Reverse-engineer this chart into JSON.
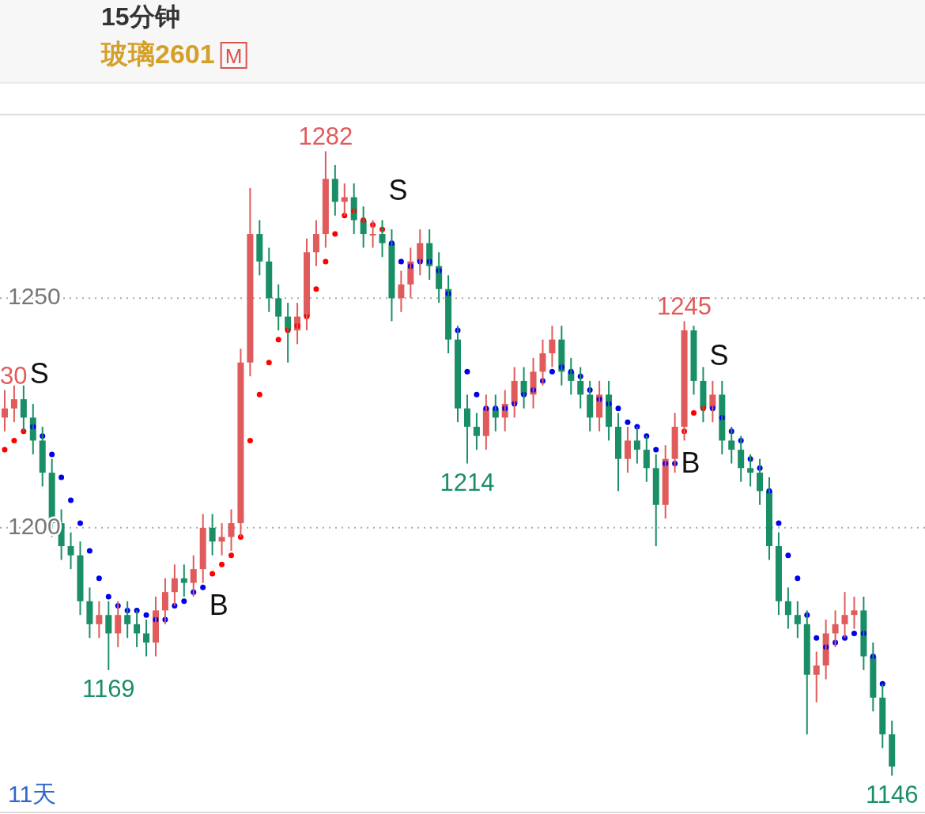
{
  "chart_data": {
    "type": "candlestick",
    "title": "15分钟",
    "subtitle": "玻璃2601",
    "xlabel": "11天",
    "categories": [
      null,
      null,
      null,
      null,
      null,
      null,
      null,
      null,
      null,
      null,
      null,
      null,
      null,
      null,
      null,
      null,
      null,
      null,
      null,
      null,
      null,
      null,
      null,
      null,
      null,
      null,
      null,
      null,
      null,
      null,
      null,
      null,
      null,
      null,
      null,
      null,
      null,
      null,
      null,
      null,
      null,
      null,
      null,
      null,
      null,
      null,
      null,
      null,
      null,
      null,
      null,
      null,
      null,
      null,
      null,
      null,
      null,
      null,
      null,
      null,
      null,
      null,
      null,
      null,
      null,
      null,
      null,
      null,
      null,
      null,
      null,
      null,
      null,
      null,
      null,
      null,
      null,
      null,
      null,
      null,
      null,
      null,
      null,
      null,
      null,
      null,
      null,
      null,
      null,
      null,
      null,
      null,
      null,
      null,
      null
    ],
    "ylim": [
      1138,
      1290
    ],
    "yticks": [
      1200,
      1250
    ],
    "tick_labels": "y",
    "grid": "y",
    "ohlc": [
      [
        1224,
        1230,
        1221,
        1226
      ],
      [
        1226,
        1231,
        1223,
        1228
      ],
      [
        1228,
        1231,
        1221,
        1224
      ],
      [
        1224,
        1227,
        1216,
        1219
      ],
      [
        1219,
        1222,
        1209,
        1212
      ],
      [
        1212,
        1215,
        1198,
        1201
      ],
      [
        1201,
        1204,
        1193,
        1196
      ],
      [
        1196,
        1199,
        1191,
        1194
      ],
      [
        1194,
        1197,
        1181,
        1184
      ],
      [
        1184,
        1187,
        1176,
        1179
      ],
      [
        1179,
        1184,
        1176,
        1181
      ],
      [
        1181,
        1184,
        1169,
        1177
      ],
      [
        1177,
        1184,
        1174,
        1181
      ],
      [
        1181,
        1184,
        1176,
        1179
      ],
      [
        1179,
        1182,
        1174,
        1177
      ],
      [
        1177,
        1180,
        1172,
        1175
      ],
      [
        1175,
        1185,
        1172,
        1182
      ],
      [
        1182,
        1189,
        1179,
        1186
      ],
      [
        1186,
        1192,
        1183,
        1189
      ],
      [
        1189,
        1192,
        1185,
        1188
      ],
      [
        1188,
        1194,
        1185,
        1191
      ],
      [
        1191,
        1203,
        1188,
        1200
      ],
      [
        1200,
        1203,
        1194,
        1197
      ],
      [
        1197,
        1201,
        1194,
        1198
      ],
      [
        1198,
        1204,
        1195,
        1201
      ],
      [
        1201,
        1239,
        1198,
        1236
      ],
      [
        1236,
        1274,
        1233,
        1264
      ],
      [
        1264,
        1267,
        1255,
        1258
      ],
      [
        1258,
        1261,
        1247,
        1250
      ],
      [
        1250,
        1253,
        1243,
        1246
      ],
      [
        1246,
        1249,
        1236,
        1243
      ],
      [
        1243,
        1249,
        1240,
        1246
      ],
      [
        1246,
        1263,
        1243,
        1260
      ],
      [
        1260,
        1267,
        1257,
        1264
      ],
      [
        1264,
        1282,
        1261,
        1276
      ],
      [
        1276,
        1279,
        1268,
        1271
      ],
      [
        1271,
        1275,
        1268,
        1272
      ],
      [
        1272,
        1275,
        1264,
        1267
      ],
      [
        1267,
        1270,
        1261,
        1264
      ],
      [
        1264,
        1267,
        1261,
        1264
      ],
      [
        1264,
        1267,
        1259,
        1262
      ],
      [
        1262,
        1265,
        1245,
        1250
      ],
      [
        1250,
        1256,
        1247,
        1253
      ],
      [
        1253,
        1261,
        1250,
        1258
      ],
      [
        1258,
        1265,
        1255,
        1262
      ],
      [
        1262,
        1265,
        1254,
        1257
      ],
      [
        1257,
        1260,
        1249,
        1252
      ],
      [
        1252,
        1255,
        1238,
        1241
      ],
      [
        1241,
        1244,
        1223,
        1226
      ],
      [
        1226,
        1229,
        1214,
        1222
      ],
      [
        1222,
        1225,
        1217,
        1220
      ],
      [
        1220,
        1229,
        1217,
        1226
      ],
      [
        1226,
        1229,
        1221,
        1224
      ],
      [
        1224,
        1230,
        1221,
        1227
      ],
      [
        1227,
        1235,
        1224,
        1232
      ],
      [
        1232,
        1235,
        1226,
        1229
      ],
      [
        1229,
        1237,
        1226,
        1234
      ],
      [
        1234,
        1241,
        1231,
        1238
      ],
      [
        1238,
        1244,
        1235,
        1241
      ],
      [
        1241,
        1244,
        1231,
        1234
      ],
      [
        1234,
        1237,
        1229,
        1232
      ],
      [
        1232,
        1235,
        1226,
        1229
      ],
      [
        1229,
        1232,
        1221,
        1224
      ],
      [
        1224,
        1232,
        1221,
        1229
      ],
      [
        1229,
        1232,
        1219,
        1222
      ],
      [
        1222,
        1225,
        1208,
        1215
      ],
      [
        1215,
        1222,
        1212,
        1219
      ],
      [
        1219,
        1222,
        1214,
        1217
      ],
      [
        1217,
        1220,
        1210,
        1213
      ],
      [
        1213,
        1216,
        1196,
        1205
      ],
      [
        1205,
        1218,
        1202,
        1215
      ],
      [
        1215,
        1225,
        1212,
        1222
      ],
      [
        1222,
        1245,
        1219,
        1243
      ],
      [
        1243,
        1244,
        1229,
        1232
      ],
      [
        1232,
        1235,
        1223,
        1226
      ],
      [
        1226,
        1232,
        1223,
        1229
      ],
      [
        1229,
        1232,
        1216,
        1219
      ],
      [
        1219,
        1222,
        1214,
        1217
      ],
      [
        1217,
        1220,
        1210,
        1213
      ],
      [
        1213,
        1216,
        1209,
        1212
      ],
      [
        1212,
        1215,
        1205,
        1208
      ],
      [
        1208,
        1211,
        1193,
        1196
      ],
      [
        1196,
        1199,
        1181,
        1184
      ],
      [
        1184,
        1187,
        1178,
        1181
      ],
      [
        1181,
        1184,
        1176,
        1179
      ],
      [
        1179,
        1182,
        1155,
        1168
      ],
      [
        1168,
        1173,
        1162,
        1170
      ],
      [
        1170,
        1180,
        1167,
        1177
      ],
      [
        1177,
        1182,
        1174,
        1179
      ],
      [
        1179,
        1186,
        1176,
        1181
      ],
      [
        1181,
        1185,
        1178,
        1182
      ],
      [
        1182,
        1185,
        1169,
        1172
      ],
      [
        1172,
        1175,
        1160,
        1163
      ],
      [
        1163,
        1166,
        1152,
        1155
      ],
      [
        1155,
        1158,
        1146,
        1148
      ]
    ],
    "series": [
      {
        "type": "scatter",
        "marker": "circle",
        "values": [
          1217,
          1219,
          1221,
          1222,
          1220,
          1216,
          1211,
          1206,
          1201,
          1195,
          1189,
          1185,
          1183,
          1182,
          1182,
          1181,
          1180,
          1180,
          1183,
          1184,
          1186,
          1187,
          1190,
          1192,
          1194,
          1198,
          1219,
          1229,
          1236,
          1241,
          1243,
          1244,
          1246,
          1252,
          1258,
          1264,
          1268,
          1269,
          1267,
          1266,
          1265,
          1262,
          1258,
          1257,
          1258,
          1258,
          1256,
          1251,
          1243,
          1234,
          1229,
          1226,
          1226,
          1226,
          1227,
          1229,
          1230,
          1232,
          1234,
          1235,
          1234,
          1233,
          1230,
          1228,
          1227,
          1226,
          1223,
          1222,
          1220,
          1217,
          1214,
          1214,
          1221,
          1225,
          1226,
          1226,
          1224,
          1221,
          1219,
          1215,
          1213,
          1208,
          1201,
          1194,
          1189,
          1181,
          1176,
          1174,
          1175,
          1176,
          1177,
          1177,
          1172,
          1166,
          null
        ],
        "colors": [
          "#ff0000",
          "#ff0000",
          "#ff0000",
          "#0000ee",
          "#0000ee",
          "#0000ee",
          "#0000ee",
          "#0000ee",
          "#0000ee",
          "#0000ee",
          "#0000ee",
          "#0000ee",
          "#0000ee",
          "#0000ee",
          "#0000ee",
          "#0000ee",
          "#0000ee",
          "#0000ee",
          "#0000ee",
          "#0000ee",
          "#0000ee",
          "#0000ee",
          "#ff0000",
          "#ff0000",
          "#ff0000",
          "#ff0000",
          "#ff0000",
          "#ff0000",
          "#ff0000",
          "#ff0000",
          "#ff0000",
          "#ff0000",
          "#ff0000",
          "#ff0000",
          "#ff0000",
          "#ff0000",
          "#ff0000",
          "#ff0000",
          "#ff0000",
          "#ff0000",
          "#ff0000",
          "#0000ee",
          "#0000ee",
          "#0000ee",
          "#0000ee",
          "#0000ee",
          "#0000ee",
          "#0000ee",
          "#0000ee",
          "#0000ee",
          "#0000ee",
          "#0000ee",
          "#0000ee",
          "#0000ee",
          "#0000ee",
          "#0000ee",
          "#0000ee",
          "#0000ee",
          "#0000ee",
          "#0000ee",
          "#0000ee",
          "#0000ee",
          "#0000ee",
          "#0000ee",
          "#0000ee",
          "#0000ee",
          "#0000ee",
          "#0000ee",
          "#0000ee",
          "#0000ee",
          "#0000ee",
          "#0000ee",
          "#ff0000",
          "#ff0000",
          "#ff0000",
          "#0000ee",
          "#0000ee",
          "#0000ee",
          "#0000ee",
          "#0000ee",
          "#0000ee",
          "#0000ee",
          "#0000ee",
          "#0000ee",
          "#0000ee",
          "#0000ee",
          "#0000ee",
          "#0000ee",
          "#0000ee",
          "#0000ee",
          "#0000ee",
          "#0000ee",
          "#0000ee",
          "#0000ee",
          "#0000ee"
        ]
      }
    ],
    "annotations": [
      "M",
      {
        "text": "30",
        "y": 1230
      },
      "S",
      {
        "text": "1169",
        "y": 1169
      },
      "B",
      {
        "text": "1282",
        "y": 1282
      },
      "S",
      {
        "text": "1214",
        "y": 1214
      },
      "B",
      {
        "text": "1245",
        "y": 1245
      },
      "S",
      {
        "text": "1146",
        "y": 1146
      }
    ]
  }
}
